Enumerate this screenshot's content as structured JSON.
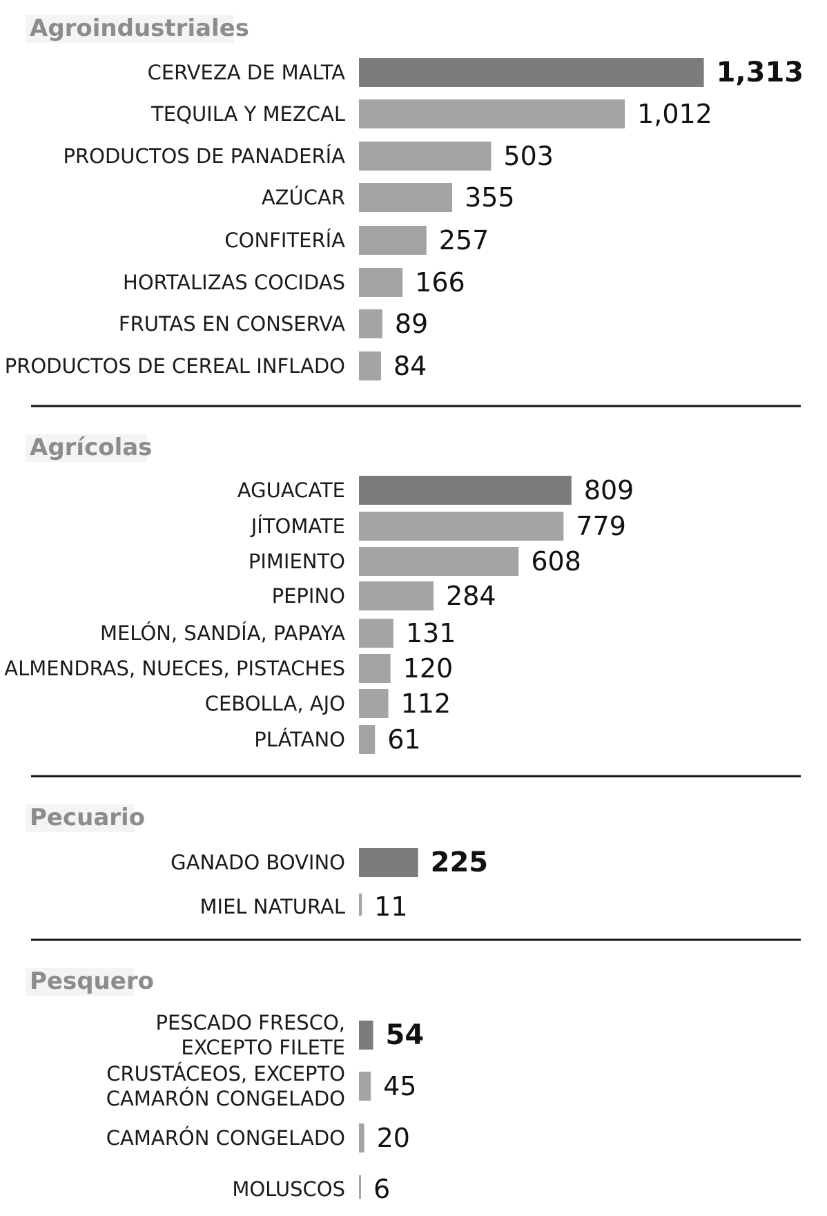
{
  "chart_data": {
    "type": "bar",
    "orientation": "horizontal",
    "grid": false,
    "legend": "none",
    "sections": [
      {
        "title": "Agroindustriales",
        "bars": [
          {
            "label": [
              "CERVEZA DE MALTA"
            ],
            "value": 1313,
            "display": "1,313",
            "highlight": true
          },
          {
            "label": [
              "TEQUILA Y MEZCAL"
            ],
            "value": 1012,
            "display": "1,012",
            "highlight": false
          },
          {
            "label": [
              "PRODUCTOS DE PANADERÍA"
            ],
            "value": 503,
            "display": "503",
            "highlight": false
          },
          {
            "label": [
              "AZÚCAR"
            ],
            "value": 355,
            "display": "355",
            "highlight": false
          },
          {
            "label": [
              "CONFITERÍA"
            ],
            "value": 257,
            "display": "257",
            "highlight": false
          },
          {
            "label": [
              "HORTALIZAS COCIDAS"
            ],
            "value": 166,
            "display": "166",
            "highlight": false
          },
          {
            "label": [
              "FRUTAS EN CONSERVA"
            ],
            "value": 89,
            "display": "89",
            "highlight": false
          },
          {
            "label": [
              "PRODUCTOS DE CEREAL INFLADO"
            ],
            "value": 84,
            "display": "84",
            "highlight": false
          }
        ]
      },
      {
        "title": "Agrícolas",
        "bars": [
          {
            "label": [
              "AGUACATE"
            ],
            "value": 809,
            "display": "809",
            "highlight": true
          },
          {
            "label": [
              "JÍTOMATE"
            ],
            "value": 779,
            "display": "779",
            "highlight": false
          },
          {
            "label": [
              "PIMIENTO"
            ],
            "value": 608,
            "display": "608",
            "highlight": false
          },
          {
            "label": [
              "PEPINO"
            ],
            "value": 284,
            "display": "284",
            "highlight": false
          },
          {
            "label": [
              "MELÓN, SANDÍA, PAPAYA"
            ],
            "value": 131,
            "display": "131",
            "highlight": false
          },
          {
            "label": [
              "ALMENDRAS, NUECES, PISTACHES"
            ],
            "value": 120,
            "display": "120",
            "highlight": false
          },
          {
            "label": [
              "CEBOLLA, AJO"
            ],
            "value": 112,
            "display": "112",
            "highlight": false
          },
          {
            "label": [
              "PLÁTANO"
            ],
            "value": 61,
            "display": "61",
            "highlight": false
          }
        ]
      },
      {
        "title": "Pecuario",
        "bars": [
          {
            "label": [
              "GANADO BOVINO"
            ],
            "value": 225,
            "display": "225",
            "highlight": true
          },
          {
            "label": [
              "MIEL NATURAL"
            ],
            "value": 11,
            "display": "11",
            "highlight": false
          }
        ]
      },
      {
        "title": "Pesquero",
        "bars": [
          {
            "label": [
              "PESCADO FRESCO,",
              "EXCEPTO FILETE"
            ],
            "value": 54,
            "display": "54",
            "highlight": true
          },
          {
            "label": [
              "CRUSTÁCEOS, EXCEPTO",
              "CAMARÓN CONGELADO"
            ],
            "value": 45,
            "display": "45",
            "highlight": false
          },
          {
            "label": [
              "CAMARÓN CONGELADO"
            ],
            "value": 20,
            "display": "20",
            "highlight": false
          },
          {
            "label": [
              "MOLUSCOS"
            ],
            "value": 6,
            "display": "6",
            "highlight": false
          }
        ]
      }
    ],
    "colors": {
      "highlight_bar": "#7c7c7c",
      "bar": "#a4a4a4",
      "section_title": "#8c8c8c",
      "section_title_bg": "#f4f4f4",
      "label": "#1a1a1a",
      "value": "#111111",
      "divider": "#111111"
    }
  }
}
